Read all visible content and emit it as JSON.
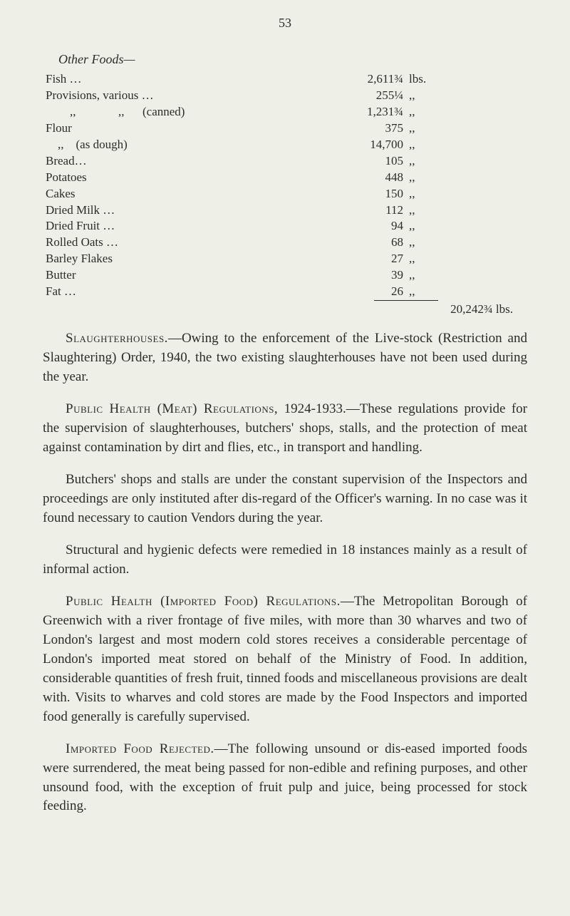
{
  "page_number": "53",
  "section_heading": "Other Foods—",
  "foods": [
    {
      "label": "Fish …",
      "value": "2,611¾",
      "unit": "lbs."
    },
    {
      "label": "Provisions, various …",
      "value": "255¼",
      "unit": ",,"
    },
    {
      "label": "        ,,              ,,      (canned)",
      "value": "1,231¾",
      "unit": ",,"
    },
    {
      "label": "Flour",
      "value": "375",
      "unit": ",,"
    },
    {
      "label": "    ,,    (as dough)",
      "value": "14,700",
      "unit": ",,"
    },
    {
      "label": "Bread…",
      "value": "105",
      "unit": ",,"
    },
    {
      "label": "Potatoes",
      "value": "448",
      "unit": ",,"
    },
    {
      "label": "Cakes",
      "value": "150",
      "unit": ",,"
    },
    {
      "label": "Dried Milk …",
      "value": "112",
      "unit": ",,"
    },
    {
      "label": "Dried Fruit …",
      "value": "94",
      "unit": ",,"
    },
    {
      "label": "Rolled Oats …",
      "value": "68",
      "unit": ",,"
    },
    {
      "label": "Barley Flakes",
      "value": "27",
      "unit": ",,"
    },
    {
      "label": "Butter",
      "value": "39",
      "unit": ",,"
    },
    {
      "label": "Fat …",
      "value": "26",
      "unit": ",,"
    }
  ],
  "total": "20,242¾ lbs.",
  "paragraphs": {
    "p1_lead": "Slaughterhouses.",
    "p1_body": "—Owing to the enforcement of the Live-stock (Restriction and Slaughtering) Order, 1940, the two existing slaughterhouses have not been used during the year.",
    "p2_lead": "Public Health (Meat) Regulations,",
    "p2_body": " 1924-1933.—These regulations provide for the supervision of slaughterhouses, butchers' shops, stalls, and the protection of meat against contamination by dirt and flies, etc., in transport and handling.",
    "p3": "Butchers' shops and stalls are under the constant supervision of the Inspectors and proceedings are only instituted after dis-regard of the Officer's warning. In no case was it found necessary to caution Vendors during the year.",
    "p4": "Structural and hygienic defects were remedied in 18 instances mainly as a result of informal action.",
    "p5_lead": "Public Health (Imported Food) Regulations.",
    "p5_body": "—The Metropolitan Borough of Greenwich with a river frontage of five miles, with more than 30 wharves and two of London's largest and most modern cold stores receives a considerable percentage of London's imported meat stored on behalf of the Ministry of Food. In addition, considerable quantities of fresh fruit, tinned foods and miscellaneous provisions are dealt with. Visits to wharves and cold stores are made by the Food Inspectors and imported food generally is carefully supervised.",
    "p6_lead": "Imported Food Rejected.",
    "p6_body": "—The following unsound or dis-eased imported foods were surrendered, the meat being passed for non-edible and refining purposes, and other unsound food, with the exception of fruit pulp and juice, being processed for stock feeding."
  }
}
